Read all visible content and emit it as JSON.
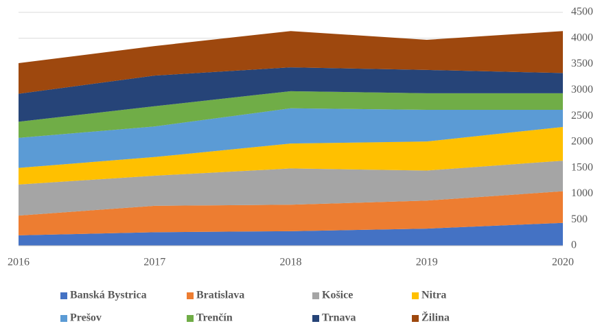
{
  "chart_data": {
    "type": "stacked_area",
    "categories": [
      "2016",
      "2017",
      "2018",
      "2019",
      "2020"
    ],
    "series": [
      {
        "name": "Banská Bystrica",
        "color": "#4472c4",
        "values": [
          200,
          260,
          280,
          330,
          440
        ]
      },
      {
        "name": "Bratislava",
        "color": "#ed7d31",
        "values": [
          380,
          510,
          510,
          540,
          610
        ]
      },
      {
        "name": "Košice",
        "color": "#a5a5a5",
        "values": [
          600,
          580,
          700,
          580,
          590
        ]
      },
      {
        "name": "Nitra",
        "color": "#ffc000",
        "values": [
          320,
          360,
          480,
          560,
          650
        ]
      },
      {
        "name": "Prešov",
        "color": "#5b9bd5",
        "values": [
          580,
          590,
          680,
          610,
          330
        ]
      },
      {
        "name": "Trenčín",
        "color": "#70ad47",
        "values": [
          310,
          390,
          330,
          320,
          320
        ]
      },
      {
        "name": "Trnava",
        "color": "#264478",
        "values": [
          540,
          590,
          460,
          450,
          390
        ]
      },
      {
        "name": "Žilina",
        "color": "#9e480e",
        "values": [
          590,
          570,
          700,
          580,
          810
        ]
      }
    ],
    "ylim": [
      0,
      4500
    ],
    "yticks": [
      0,
      500,
      1000,
      1500,
      2000,
      2500,
      3000,
      3500,
      4000,
      4500
    ],
    "grid": true,
    "legend": "bottom"
  }
}
